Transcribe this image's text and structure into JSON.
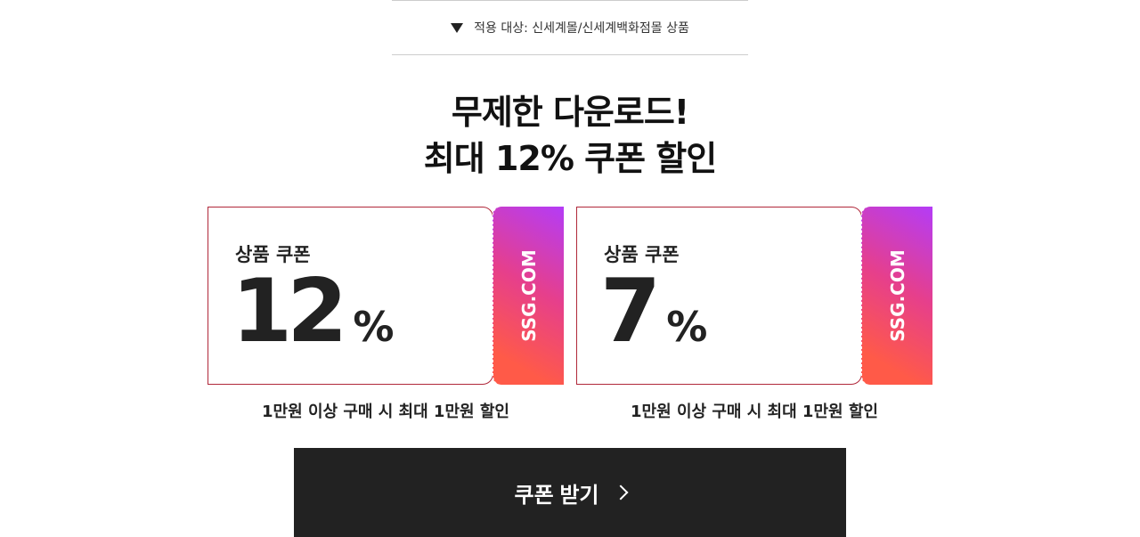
{
  "scope": {
    "label": "적용 대상: 신세계몰/신세계백화점몰 상품",
    "icon": "triangle-down-icon"
  },
  "headline": {
    "line1": "무제한 다운로드!",
    "line2": "최대 12% 쿠폰 할인"
  },
  "coupons": [
    {
      "title": "상품 쿠폰",
      "value": "12",
      "unit": "%",
      "brand": "SSG.COM",
      "condition": "1만원 이상 구매 시 최대 1만원 할인"
    },
    {
      "title": "상품 쿠폰",
      "value": "7",
      "unit": "%",
      "brand": "SSG.COM",
      "condition": "1만원 이상 구매 시 최대 1만원 할인"
    }
  ],
  "cta": {
    "label": "쿠폰 받기",
    "icon": "chevron-right-icon"
  },
  "colors": {
    "border": "#b0283a",
    "gradient_start": "#ff5a48",
    "gradient_end": "#b43cf7",
    "button": "#222222"
  }
}
